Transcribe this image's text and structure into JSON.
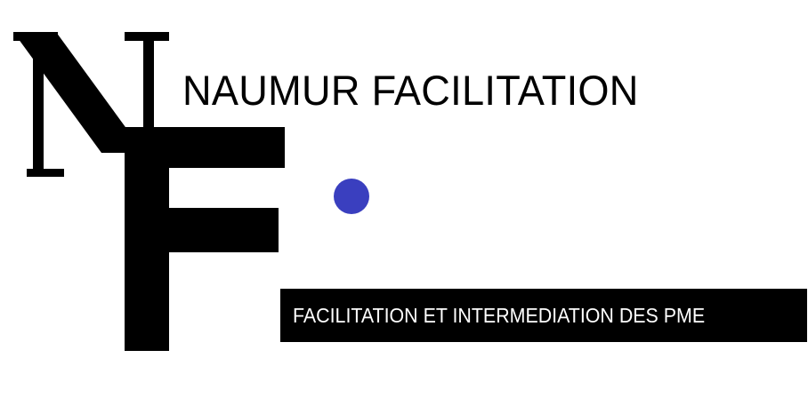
{
  "logo": {
    "monogram_letters": "NF",
    "company_name": "NAUMUR FACILITATION",
    "tagline": "FACILITATION ET INTERMEDIATION DES PME",
    "colors": {
      "text": "#000000",
      "dot": "#3a3fbf",
      "bar": "#000000",
      "bar_text": "#ffffff"
    }
  }
}
